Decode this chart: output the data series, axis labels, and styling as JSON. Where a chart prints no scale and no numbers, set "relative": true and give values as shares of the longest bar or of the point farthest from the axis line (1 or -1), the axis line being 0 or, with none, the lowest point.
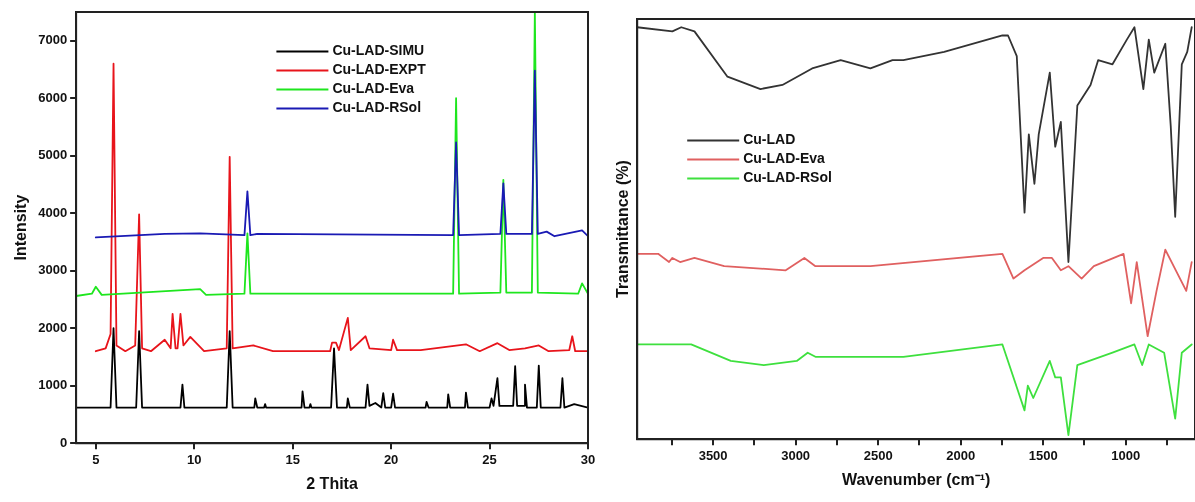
{
  "chart_data": [
    {
      "type": "line",
      "xlabel": "2 Thita",
      "ylabel": "Intensity",
      "xlim": [
        4,
        30
      ],
      "xticks": [
        5,
        10,
        15,
        20,
        25,
        30
      ],
      "ylim": [
        0,
        7500
      ],
      "yticks": [
        0,
        1000,
        2000,
        3000,
        4000,
        5000,
        6000,
        7000
      ],
      "grid": false,
      "legend": "top",
      "marker": "none",
      "line_style": "solid",
      "series": [
        {
          "name": "Cu-LAD-SIMU",
          "color": "#000000",
          "x": [
            4,
            5.75,
            5.9,
            6.05,
            7.05,
            7.2,
            7.35,
            9.3,
            9.4,
            9.5,
            11.65,
            11.8,
            11.95,
            13.05,
            13.1,
            13.2,
            13.55,
            13.6,
            13.65,
            15.45,
            15.5,
            15.6,
            15.85,
            15.9,
            15.95,
            16.95,
            17.1,
            17.25,
            17.75,
            17.8,
            17.9,
            18.7,
            18.8,
            18.9,
            19.2,
            19.5,
            19.6,
            19.7,
            20.0,
            20.1,
            20.2,
            21.75,
            21.8,
            21.9,
            22.85,
            22.9,
            23.0,
            23.75,
            23.8,
            23.9,
            25.0,
            25.1,
            25.2,
            25.4,
            25.5,
            26.2,
            26.3,
            26.4,
            26.75,
            26.8,
            26.9,
            27.4,
            27.5,
            27.6,
            28.6,
            28.7,
            28.8,
            29.3,
            30
          ],
          "values": [
            620,
            620,
            2000,
            620,
            620,
            1950,
            620,
            620,
            1020,
            620,
            620,
            1950,
            620,
            620,
            780,
            620,
            620,
            680,
            620,
            620,
            900,
            620,
            620,
            680,
            620,
            620,
            1650,
            620,
            620,
            780,
            620,
            620,
            1020,
            650,
            700,
            620,
            870,
            620,
            620,
            860,
            620,
            620,
            720,
            620,
            620,
            850,
            620,
            620,
            880,
            620,
            620,
            780,
            650,
            1130,
            650,
            650,
            1340,
            650,
            650,
            1020,
            620,
            620,
            1350,
            620,
            620,
            1130,
            620,
            680,
            620
          ]
        },
        {
          "name": "Cu-LAD-EXPT",
          "color": "#e8141b",
          "x": [
            5,
            5.5,
            5.75,
            5.9,
            6.05,
            6.5,
            7.0,
            7.2,
            7.35,
            7.8,
            8.5,
            8.8,
            8.9,
            9.05,
            9.15,
            9.3,
            9.45,
            9.8,
            10.5,
            11.65,
            11.8,
            11.95,
            13.0,
            14,
            16.9,
            17.0,
            17.2,
            17.35,
            17.8,
            17.95,
            18.7,
            18.9,
            20.0,
            20.1,
            20.3,
            21.5,
            23.8,
            24.5,
            25.4,
            26.0,
            26.8,
            27.5,
            28,
            29.05,
            29.2,
            29.35,
            30
          ],
          "values": [
            1600,
            1650,
            1900,
            6600,
            1700,
            1600,
            1700,
            3980,
            1650,
            1600,
            1800,
            1650,
            2250,
            1650,
            1650,
            2250,
            1700,
            1850,
            1600,
            1650,
            4980,
            1650,
            1700,
            1600,
            1600,
            1750,
            1750,
            1620,
            2180,
            1620,
            1860,
            1650,
            1620,
            1800,
            1620,
            1620,
            1720,
            1600,
            1740,
            1620,
            1650,
            1700,
            1600,
            1620,
            1860,
            1600,
            1600
          ]
        },
        {
          "name": "Cu-LAD-Eva",
          "color": "#1ee61e",
          "x": [
            4,
            4.8,
            5.0,
            5.3,
            10.3,
            10.6,
            12.55,
            12.7,
            12.85,
            23.15,
            23.3,
            23.45,
            25.55,
            25.7,
            25.85,
            27.15,
            27.3,
            27.45,
            29.5,
            29.7,
            30
          ],
          "values": [
            2560,
            2600,
            2720,
            2580,
            2680,
            2580,
            2600,
            3650,
            2600,
            2600,
            6000,
            2600,
            2620,
            4580,
            2620,
            2620,
            7500,
            2620,
            2600,
            2780,
            2600
          ]
        },
        {
          "name": "Cu-LAD-RSol",
          "color": "#1a1ab4",
          "x": [
            5,
            8.5,
            10.3,
            12.55,
            12.7,
            12.85,
            13.2,
            23.15,
            23.3,
            23.45,
            25.55,
            25.7,
            25.85,
            27.15,
            27.3,
            27.45,
            27.9,
            28.3,
            29.7,
            30
          ],
          "values": [
            3580,
            3640,
            3650,
            3620,
            4380,
            3620,
            3640,
            3620,
            5230,
            3620,
            3640,
            4520,
            3640,
            3640,
            6480,
            3640,
            3680,
            3600,
            3700,
            3600
          ]
        }
      ]
    },
    {
      "type": "line",
      "xlabel": "Wavenumber (cm⁻¹)",
      "ylabel": "Transmittance (%)",
      "relative": true,
      "tick_labels": "x",
      "xlim": [
        3960,
        580
      ],
      "xticks": [
        {
          "value": 3750,
          "label": null
        },
        3500,
        {
          "value": 3250,
          "label": null
        },
        3000,
        {
          "value": 2750,
          "label": null
        },
        2500,
        {
          "value": 2250,
          "label": null
        },
        2000,
        {
          "value": 1750,
          "label": null
        },
        1500,
        {
          "value": 1250,
          "label": null
        },
        1000,
        {
          "value": 750,
          "label": null
        }
      ],
      "grid": false,
      "legend": "top left",
      "marker": "none",
      "line_style": "solid",
      "series": [
        {
          "name": "Cu-LAD",
          "color": "#333333",
          "x": [
            3960,
            3747,
            3693,
            3613,
            3413,
            3213,
            3080,
            2900,
            2727,
            2547,
            2413,
            2347,
            2100,
            1747,
            1713,
            1660,
            1613,
            1587,
            1553,
            1527,
            1460,
            1427,
            1393,
            1347,
            1293,
            1213,
            1167,
            1080,
            993,
            947,
            893,
            860,
            827,
            760,
            727,
            700,
            660,
            627,
            600
          ],
          "values": [
            1.0,
            0.99,
            1.0,
            0.99,
            0.88,
            0.85,
            0.86,
            0.9,
            0.92,
            0.9,
            0.92,
            0.92,
            0.94,
            0.98,
            0.98,
            0.93,
            0.55,
            0.74,
            0.62,
            0.74,
            0.89,
            0.71,
            0.77,
            0.43,
            0.81,
            0.86,
            0.92,
            0.91,
            0.97,
            1.0,
            0.85,
            0.97,
            0.89,
            0.96,
            0.76,
            0.54,
            0.91,
            0.94,
            1.0
          ]
        },
        {
          "name": "Cu-LAD-Eva",
          "color": "#e06060",
          "x": [
            3960,
            3833,
            3767,
            3747,
            3700,
            3613,
            3433,
            3060,
            2947,
            2880,
            2813,
            2547,
            1747,
            1680,
            1613,
            1500,
            1447,
            1393,
            1347,
            1267,
            1193,
            1013,
            967,
            933,
            867,
            813,
            760,
            633,
            600
          ],
          "values": [
            0.45,
            0.45,
            0.43,
            0.44,
            0.43,
            0.44,
            0.42,
            0.41,
            0.44,
            0.42,
            0.42,
            0.42,
            0.45,
            0.39,
            0.41,
            0.44,
            0.44,
            0.41,
            0.42,
            0.39,
            0.42,
            0.45,
            0.33,
            0.43,
            0.25,
            0.36,
            0.46,
            0.36,
            0.43
          ]
        },
        {
          "name": "Cu-LAD-RSol",
          "color": "#3ee03e",
          "x": [
            3960,
            3633,
            3393,
            3193,
            2993,
            2927,
            2880,
            2767,
            2413,
            2347,
            1747,
            1613,
            1593,
            1560,
            1460,
            1427,
            1393,
            1347,
            1293,
            1080,
            947,
            900,
            860,
            767,
            700,
            660,
            600
          ],
          "values": [
            0.23,
            0.23,
            0.19,
            0.18,
            0.19,
            0.21,
            0.2,
            0.2,
            0.2,
            0.2,
            0.23,
            0.07,
            0.13,
            0.1,
            0.19,
            0.15,
            0.15,
            0.01,
            0.18,
            0.21,
            0.23,
            0.18,
            0.23,
            0.21,
            0.05,
            0.21,
            0.23
          ]
        }
      ]
    }
  ]
}
